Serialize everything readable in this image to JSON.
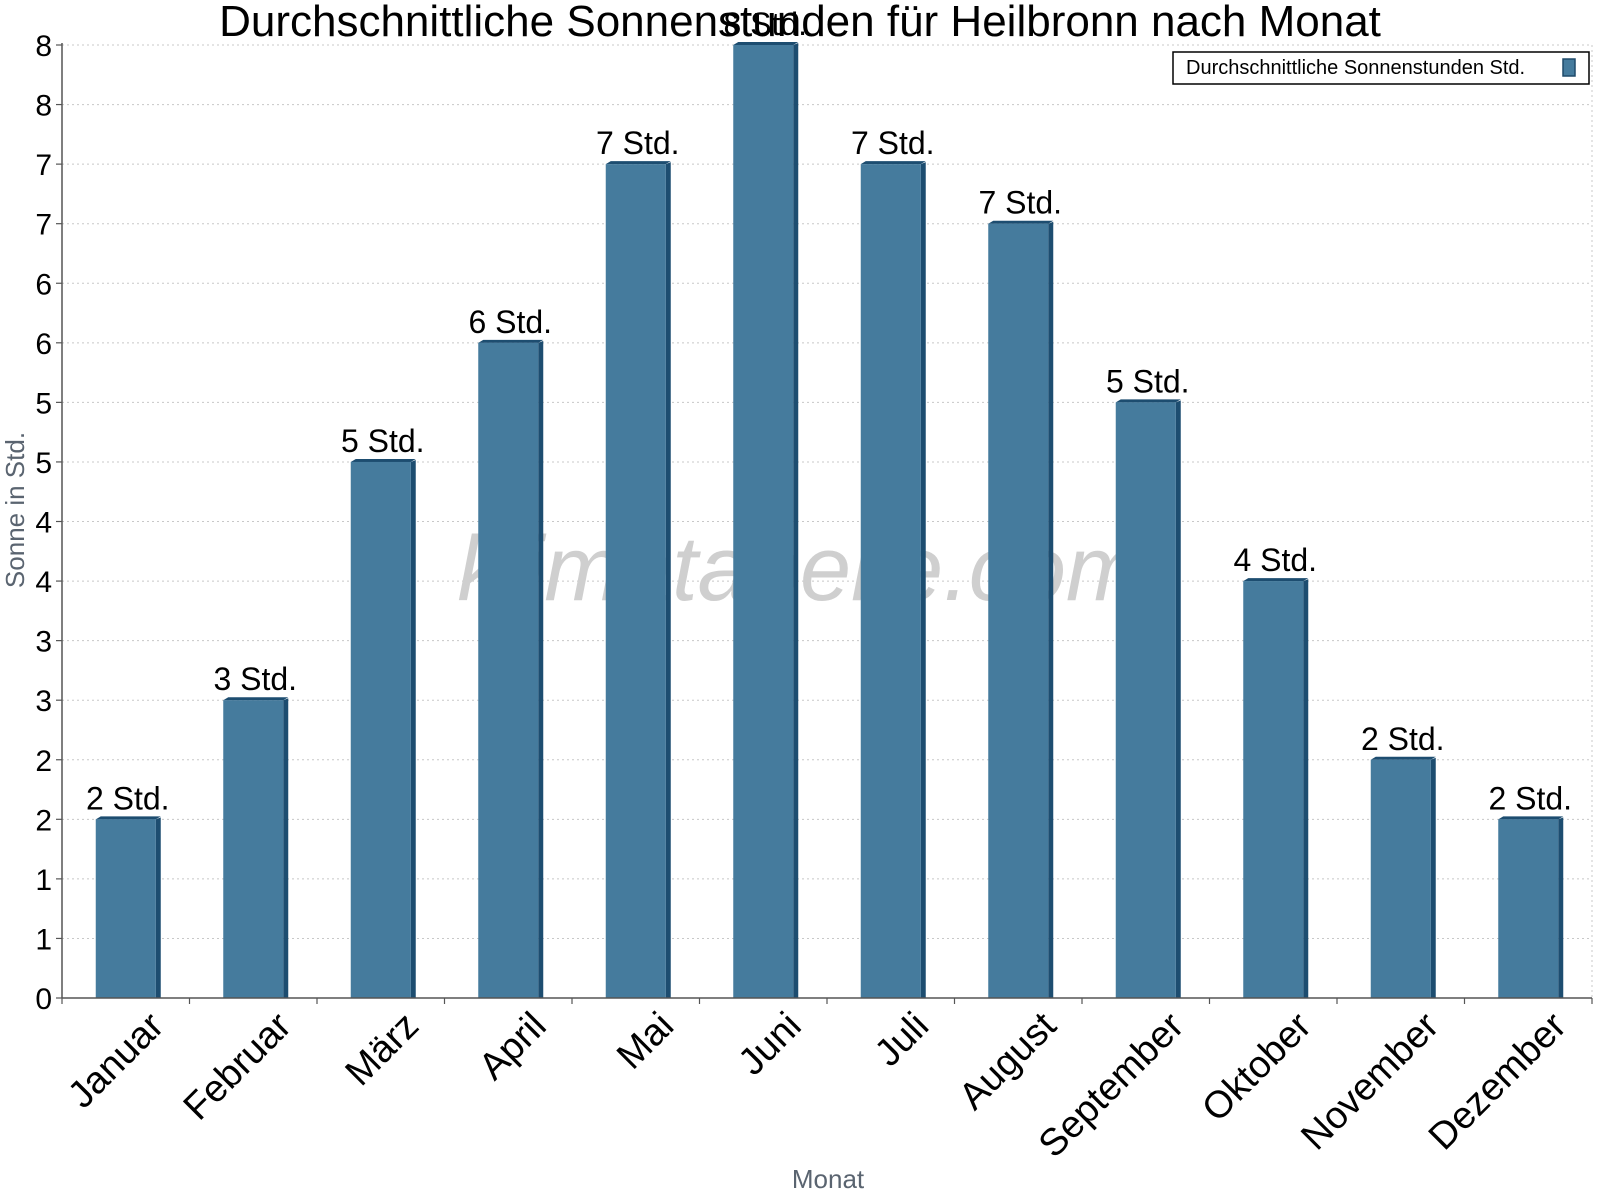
{
  "chart_data": {
    "type": "bar",
    "title": "Durchschnittliche Sonnenstunden für Heilbronn nach Monat",
    "xlabel": "Monat",
    "ylabel": "Sonne in Std.",
    "categories": [
      "Januar",
      "Februar",
      "März",
      "April",
      "Mai",
      "Juni",
      "Juli",
      "August",
      "September",
      "Oktober",
      "November",
      "Dezember"
    ],
    "series": [
      {
        "name": "Durchschnittliche Sonnenstunden Std.",
        "values": [
          1.5,
          2.5,
          4.5,
          5.5,
          7.0,
          8.0,
          7.0,
          6.5,
          5.0,
          3.5,
          2.0,
          1.5
        ],
        "labels": [
          "2 Std.",
          "3 Std.",
          "5 Std.",
          "6 Std.",
          "7 Std.",
          "8 Std.",
          "7 Std.",
          "7 Std.",
          "5 Std.",
          "4 Std.",
          "2 Std.",
          "2 Std."
        ],
        "color": "#457b9d"
      }
    ],
    "ylim": [
      0,
      8
    ],
    "yticks": [
      0,
      0.5,
      1,
      1.5,
      2,
      2.5,
      3,
      3.5,
      4,
      4.5,
      5,
      5.5,
      6,
      6.5,
      7,
      7.5,
      8
    ],
    "ytick_labels": [
      "0",
      "1",
      "1",
      "2",
      "2",
      "3",
      "3",
      "4",
      "4",
      "5",
      "5",
      "6",
      "6",
      "7",
      "7",
      "8",
      "8"
    ],
    "grid": true,
    "legend": "top-right",
    "watermark": "klimatabelle.com"
  }
}
